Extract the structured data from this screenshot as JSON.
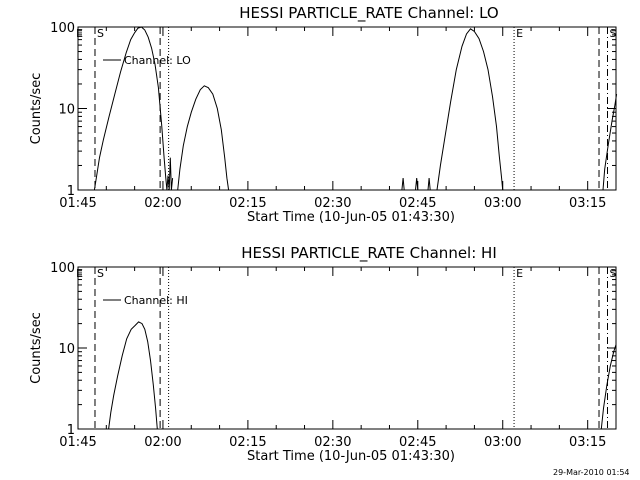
{
  "chart_data": [
    {
      "type": "line",
      "title": "HESSI PARTICLE_RATE Channel: LO",
      "xlabel": "Start Time (10-Jun-05 01:43:30)",
      "ylabel": "Counts/sec",
      "yscale": "log",
      "ylim": [
        1,
        100
      ],
      "xlim_minutes": [
        105,
        200
      ],
      "x_tick_labels": [
        "01:45",
        "02:00",
        "02:15",
        "02:30",
        "02:45",
        "03:00",
        "03:15"
      ],
      "y_tick_labels": [
        "1",
        "10",
        "100"
      ],
      "legend": {
        "label": "Channel: LO",
        "placement": "top-left"
      },
      "markers": [
        {
          "label": "E",
          "time": "01:44.3",
          "style": "none"
        },
        {
          "label": "S",
          "time": "01:48",
          "style": "dashed"
        },
        {
          "label": "",
          "time": "01:59.5",
          "style": "dashed"
        },
        {
          "label": "",
          "time": "02:01",
          "style": "dotted"
        },
        {
          "label": "E",
          "time": "03:02",
          "style": "dotted"
        },
        {
          "label": "",
          "time": "03:17",
          "style": "dashed"
        },
        {
          "label": "S",
          "time": "03:18.5",
          "style": "dashdot"
        }
      ],
      "series": [
        {
          "name": "Channel: LO",
          "segments": [
            [
              [
                107.9,
                1
              ],
              [
                108.3,
                1.5
              ],
              [
                108.8,
                2.5
              ],
              [
                109.5,
                4.2
              ],
              [
                110.5,
                8
              ],
              [
                111.5,
                15
              ],
              [
                112.5,
                28
              ],
              [
                113.5,
                48
              ],
              [
                114.3,
                70
              ],
              [
                115,
                85
              ],
              [
                115.6,
                97
              ],
              [
                116.2,
                100
              ],
              [
                116.8,
                92
              ],
              [
                117.4,
                75
              ],
              [
                118,
                55
              ],
              [
                118.6,
                35
              ],
              [
                119.2,
                18
              ],
              [
                119.8,
                6
              ],
              [
                120.2,
                2.5
              ],
              [
                120.5,
                1.4
              ],
              [
                120.7,
                1
              ],
              [
                120.9,
                1.5
              ],
              [
                121.1,
                1
              ],
              [
                121.3,
                2.5
              ],
              [
                121.5,
                1
              ],
              [
                121.7,
                1.4
              ]
            ],
            [
              [
                122.6,
                1
              ],
              [
                123,
                1.8
              ],
              [
                123.6,
                3.5
              ],
              [
                124.3,
                6
              ],
              [
                125,
                9
              ],
              [
                125.8,
                13
              ],
              [
                126.6,
                17
              ],
              [
                127.3,
                19
              ],
              [
                128,
                18
              ],
              [
                128.8,
                15
              ],
              [
                129.6,
                10
              ],
              [
                130.3,
                5.5
              ],
              [
                130.9,
                2.5
              ],
              [
                131.3,
                1.4
              ],
              [
                131.6,
                1
              ]
            ],
            [
              [
                162.2,
                1
              ],
              [
                162.4,
                1.4
              ],
              [
                162.6,
                1
              ]
            ],
            [
              [
                164.6,
                1
              ],
              [
                164.8,
                1.4
              ],
              [
                165,
                1
              ]
            ],
            [
              [
                166.8,
                1
              ],
              [
                167,
                1.4
              ],
              [
                167.2,
                1
              ]
            ],
            [
              [
                168.4,
                1
              ],
              [
                169,
                2
              ],
              [
                169.8,
                4.5
              ],
              [
                170.8,
                12
              ],
              [
                171.8,
                30
              ],
              [
                172.8,
                58
              ],
              [
                173.6,
                82
              ],
              [
                174.3,
                95
              ],
              [
                175,
                88
              ],
              [
                175.8,
                72
              ],
              [
                176.6,
                50
              ],
              [
                177.4,
                30
              ],
              [
                178.2,
                14
              ],
              [
                178.9,
                6
              ],
              [
                179.4,
                2.6
              ],
              [
                179.8,
                1.4
              ],
              [
                180,
                1
              ]
            ],
            [
              [
                197.7,
                1
              ],
              [
                198,
                1.8
              ],
              [
                198.6,
                3.5
              ],
              [
                199.3,
                7
              ],
              [
                199.8,
                11
              ],
              [
                200.1,
                15
              ]
            ]
          ]
        }
      ]
    },
    {
      "type": "line",
      "title": "HESSI PARTICLE_RATE Channel: HI",
      "xlabel": "Start Time (10-Jun-05 01:43:30)",
      "ylabel": "Counts/sec",
      "yscale": "log",
      "ylim": [
        1,
        100
      ],
      "xlim_minutes": [
        105,
        200
      ],
      "x_tick_labels": [
        "01:45",
        "02:00",
        "02:15",
        "02:30",
        "02:45",
        "03:00",
        "03:15"
      ],
      "y_tick_labels": [
        "1",
        "10",
        "100"
      ],
      "legend": {
        "label": "Channel: HI",
        "placement": "top-left"
      },
      "markers": [
        {
          "label": "E",
          "time": "01:44.3",
          "style": "none"
        },
        {
          "label": "S",
          "time": "01:48",
          "style": "dashed"
        },
        {
          "label": "",
          "time": "01:59.5",
          "style": "dashed"
        },
        {
          "label": "",
          "time": "02:01",
          "style": "dotted"
        },
        {
          "label": "E",
          "time": "03:02",
          "style": "dotted"
        },
        {
          "label": "",
          "time": "03:17",
          "style": "dashed"
        },
        {
          "label": "S",
          "time": "03:18.5",
          "style": "dashdot"
        }
      ],
      "series": [
        {
          "name": "Channel: HI",
          "segments": [
            [
              [
                110.4,
                1
              ],
              [
                110.8,
                1.6
              ],
              [
                111.3,
                2.6
              ],
              [
                112,
                4.5
              ],
              [
                112.8,
                8
              ],
              [
                113.6,
                13
              ],
              [
                114.4,
                17
              ],
              [
                115.1,
                19
              ],
              [
                115.7,
                21
              ],
              [
                116.3,
                20
              ],
              [
                116.8,
                17
              ],
              [
                117.3,
                12
              ],
              [
                117.8,
                7
              ],
              [
                118.3,
                3.5
              ],
              [
                118.7,
                1.8
              ],
              [
                119,
                1
              ]
            ],
            [
              [
                197.4,
                1
              ],
              [
                197.8,
                1.8
              ],
              [
                198.4,
                3.5
              ],
              [
                199,
                6
              ],
              [
                199.6,
                9
              ],
              [
                200,
                11
              ]
            ]
          ]
        }
      ]
    }
  ],
  "footer": {
    "timestamp": "29-Mar-2010 01:54"
  }
}
